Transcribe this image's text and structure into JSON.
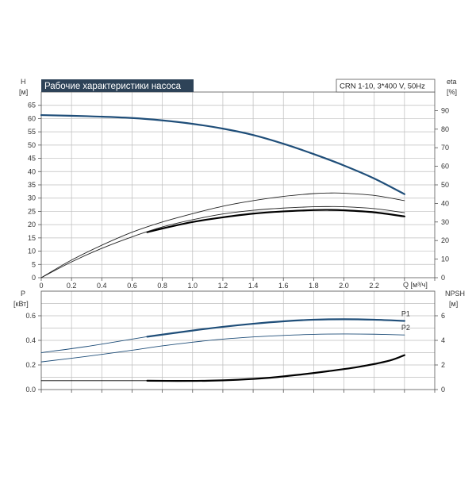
{
  "chart_data": [
    {
      "type": "line",
      "title": "Рабочие характеристики насоса",
      "model_info": "CRN 1-10, 3*400 V, 50Hz",
      "y_label": "H",
      "y_unit": "[м]",
      "y2_label": "eta",
      "y2_unit": "[%]",
      "x_label": "Q [м³/ч]",
      "xlim": [
        0,
        2.6
      ],
      "ylim": [
        0,
        70
      ],
      "y2lim": [
        0,
        100
      ],
      "x_ticks": [
        "0",
        "0.2",
        "0.4",
        "0.6",
        "0.8",
        "1.0",
        "1.2",
        "1.4",
        "1.6",
        "1.8",
        "2.0",
        "2.2"
      ],
      "y_ticks": [
        "0",
        "5",
        "10",
        "15",
        "20",
        "25",
        "30",
        "35",
        "40",
        "45",
        "50",
        "55",
        "60",
        "65"
      ],
      "y2_ticks": [
        "0",
        "10",
        "20",
        "30",
        "40",
        "50",
        "60",
        "70",
        "80",
        "90"
      ],
      "grid": true,
      "series": [
        {
          "axis": "left",
          "color": "#1f4e79",
          "weight": "bold",
          "points": [
            [
              0,
              61.3
            ],
            [
              0.3,
              60.9
            ],
            [
              0.6,
              60.2
            ],
            [
              0.8,
              59.3
            ],
            [
              1.0,
              58.0
            ],
            [
              1.2,
              56.2
            ],
            [
              1.4,
              53.8
            ],
            [
              1.6,
              50.5
            ],
            [
              1.8,
              46.6
            ],
            [
              2.0,
              42.3
            ],
            [
              2.2,
              37.4
            ],
            [
              2.4,
              31.5
            ]
          ]
        },
        {
          "axis": "right",
          "color": "#222222",
          "weight": "thin",
          "points": [
            [
              0,
              0
            ],
            [
              0.2,
              9.5
            ],
            [
              0.4,
              17.5
            ],
            [
              0.6,
              24.5
            ],
            [
              0.8,
              30.0
            ],
            [
              1.0,
              34.5
            ],
            [
              1.2,
              38.5
            ],
            [
              1.4,
              41.5
            ],
            [
              1.6,
              43.8
            ],
            [
              1.8,
              45.3
            ],
            [
              1.9,
              45.6
            ],
            [
              2.0,
              45.5
            ],
            [
              2.2,
              44.3
            ],
            [
              2.4,
              41.5
            ]
          ]
        },
        {
          "axis": "right",
          "color": "#000000",
          "weight": "bold",
          "points": [
            [
              0.7,
              24.5
            ],
            [
              0.8,
              26.5
            ],
            [
              1.0,
              30.0
            ],
            [
              1.2,
              32.5
            ],
            [
              1.4,
              34.5
            ],
            [
              1.6,
              35.7
            ],
            [
              1.8,
              36.4
            ],
            [
              1.9,
              36.5
            ],
            [
              2.0,
              36.3
            ],
            [
              2.2,
              35.2
            ],
            [
              2.4,
              33.0
            ]
          ]
        },
        {
          "axis": "right",
          "color": "#222222",
          "weight": "thin",
          "points": [
            [
              0,
              0
            ],
            [
              0.2,
              8.5
            ],
            [
              0.4,
              15.8
            ],
            [
              0.6,
              22.0
            ],
            [
              0.8,
              27.3
            ],
            [
              1.0,
              31.2
            ],
            [
              1.2,
              34.3
            ],
            [
              1.4,
              36.3
            ],
            [
              1.6,
              37.5
            ],
            [
              1.8,
              38.2
            ],
            [
              1.9,
              38.3
            ],
            [
              2.0,
              38.2
            ],
            [
              2.2,
              37.2
            ],
            [
              2.4,
              35.0
            ]
          ]
        }
      ]
    },
    {
      "type": "line",
      "y_label": "P",
      "y_unit": "[кВт]",
      "y2_label": "NPSH",
      "y2_unit": "[м]",
      "xlim": [
        0,
        2.6
      ],
      "ylim": [
        0,
        0.8
      ],
      "y2lim": [
        0,
        8
      ],
      "y_ticks": [
        "0.0",
        "0.2",
        "0.4",
        "0.6"
      ],
      "y2_ticks": [
        "0",
        "2",
        "4",
        "6"
      ],
      "grid": true,
      "series": [
        {
          "name": "P1",
          "axis": "left",
          "color": "#1f4e79",
          "weight": "thin",
          "points": [
            [
              0,
              0.3
            ],
            [
              0.3,
              0.35
            ],
            [
              0.6,
              0.41
            ],
            [
              0.7,
              0.43
            ]
          ]
        },
        {
          "name": "P1",
          "axis": "left",
          "color": "#1f4e79",
          "weight": "bold",
          "points": [
            [
              0.7,
              0.43
            ],
            [
              1.0,
              0.48
            ],
            [
              1.2,
              0.51
            ],
            [
              1.4,
              0.535
            ],
            [
              1.6,
              0.555
            ],
            [
              1.8,
              0.568
            ],
            [
              2.0,
              0.572
            ],
            [
              2.2,
              0.568
            ],
            [
              2.4,
              0.558
            ]
          ]
        },
        {
          "name": "P2",
          "axis": "left",
          "color": "#1f4e79",
          "weight": "thin",
          "points": [
            [
              0,
              0.225
            ],
            [
              0.3,
              0.27
            ],
            [
              0.6,
              0.32
            ],
            [
              0.8,
              0.355
            ],
            [
              1.0,
              0.385
            ],
            [
              1.2,
              0.41
            ],
            [
              1.4,
              0.428
            ],
            [
              1.6,
              0.44
            ],
            [
              1.8,
              0.449
            ],
            [
              2.0,
              0.452
            ],
            [
              2.2,
              0.45
            ],
            [
              2.4,
              0.444
            ]
          ]
        },
        {
          "axis": "right",
          "color": "#000000",
          "weight": "thin",
          "points": [
            [
              0,
              0.72
            ],
            [
              0.7,
              0.72
            ]
          ]
        },
        {
          "axis": "right",
          "color": "#000000",
          "weight": "bold",
          "points": [
            [
              0.7,
              0.72
            ],
            [
              0.9,
              0.7
            ],
            [
              1.1,
              0.72
            ],
            [
              1.3,
              0.8
            ],
            [
              1.5,
              0.95
            ],
            [
              1.7,
              1.2
            ],
            [
              1.9,
              1.5
            ],
            [
              2.1,
              1.85
            ],
            [
              2.3,
              2.35
            ],
            [
              2.4,
              2.8
            ]
          ]
        }
      ]
    }
  ]
}
